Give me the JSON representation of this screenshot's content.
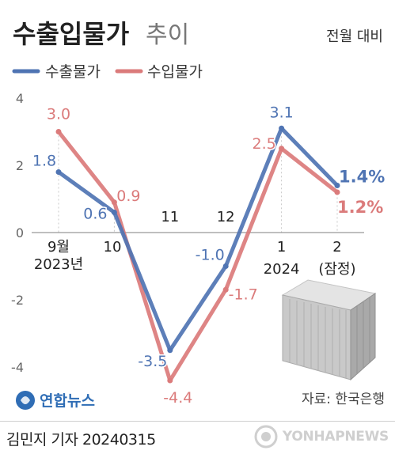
{
  "chart_data": {
    "type": "line",
    "title": "수출입물가",
    "title_suffix": "추이",
    "unit_note": "전월 대비",
    "source": "자료: 한국은행",
    "categories": [
      "9월 2023년",
      "10",
      "11",
      "12",
      "1 2024",
      "2 (잠정)"
    ],
    "x_tick_labels": [
      {
        "line1": "9월",
        "line2": "2023년"
      },
      {
        "line1": "10",
        "line2": ""
      },
      {
        "line1": "11",
        "line2": ""
      },
      {
        "line1": "12",
        "line2": ""
      },
      {
        "line1": "1",
        "line2": "2024"
      },
      {
        "line1": "2",
        "line2": "(잠정)"
      }
    ],
    "y_ticks": [
      4,
      2,
      0,
      -2,
      -4
    ],
    "ylim": [
      -5,
      4.5
    ],
    "grid": false,
    "legend_position": "top-left",
    "series": [
      {
        "name": "수출물가",
        "color": "#4f74b3",
        "values": [
          1.8,
          0.6,
          -3.5,
          -1.0,
          3.1,
          1.4
        ],
        "labels": [
          "1.8",
          "0.6",
          "-3.5",
          "-1.0",
          "3.1",
          "1.4%"
        ]
      },
      {
        "name": "수입물가",
        "color": "#db7b7b",
        "values": [
          3.0,
          0.9,
          -4.4,
          -1.7,
          2.5,
          1.2
        ],
        "labels": [
          "3.0",
          "0.9",
          "-4.4",
          "-1.7",
          "2.5",
          "1.2%"
        ]
      }
    ]
  },
  "footer": {
    "agency_logo_text": "연합뉴스",
    "credit": "김민지 기자  20240315",
    "watermark": "YONHAPNEWS"
  }
}
